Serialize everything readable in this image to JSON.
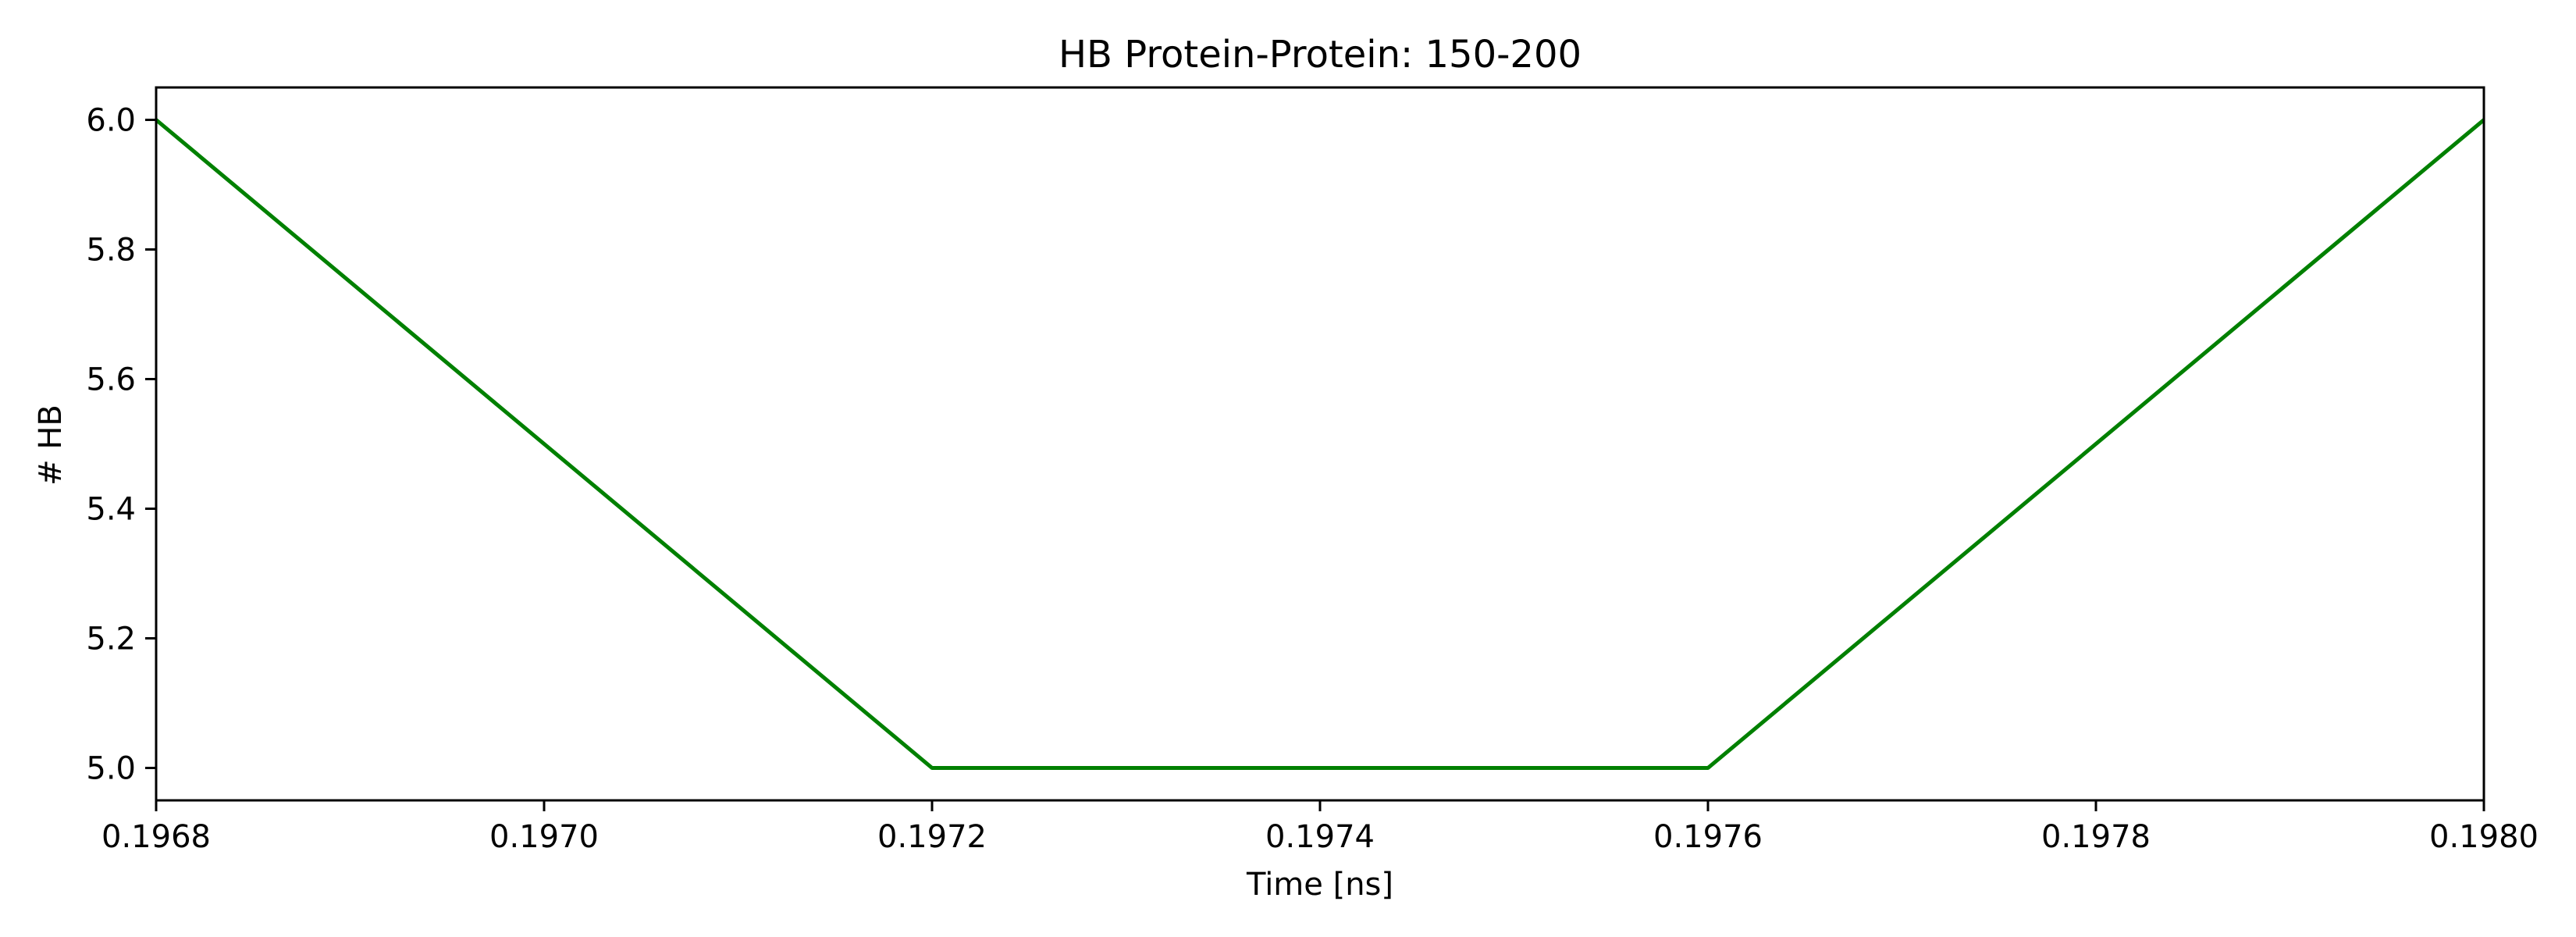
{
  "chart_data": {
    "type": "line",
    "title": "HB Protein-Protein: 150-200",
    "xlabel": "Time [ns]",
    "ylabel": "# HB",
    "xlim": [
      0.1968,
      0.198
    ],
    "ylim": [
      4.95,
      6.05
    ],
    "x_ticks": [
      0.1968,
      0.197,
      0.1972,
      0.1974,
      0.1976,
      0.1978,
      0.198
    ],
    "x_tick_labels": [
      "0.1968",
      "0.1970",
      "0.1972",
      "0.1974",
      "0.1976",
      "0.1978",
      "0.1980"
    ],
    "y_ticks": [
      5.0,
      5.2,
      5.4,
      5.6,
      5.8,
      6.0
    ],
    "y_tick_labels": [
      "5.0",
      "5.2",
      "5.4",
      "5.6",
      "5.8",
      "6.0"
    ],
    "grid": false,
    "series": [
      {
        "color": "#008000",
        "x": [
          0.1968,
          0.1972,
          0.1976,
          0.198
        ],
        "y": [
          6,
          5,
          5,
          6
        ]
      }
    ]
  }
}
